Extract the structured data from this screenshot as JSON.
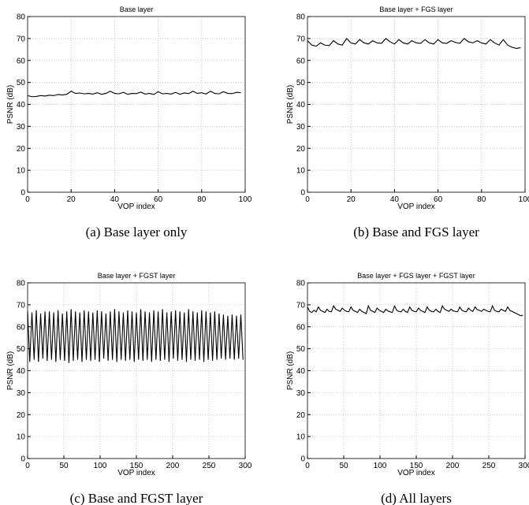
{
  "chart_data": [
    {
      "type": "line",
      "title": "Base layer",
      "caption": "(a) Base layer only",
      "xlabel": "VOP index",
      "ylabel": "PSNR (dB)",
      "color": "#000000",
      "grid": true,
      "xlim": [
        0,
        100
      ],
      "xticks": [
        0,
        20,
        40,
        60,
        80,
        100
      ],
      "ylim": [
        0,
        80
      ],
      "yticks": [
        0,
        10,
        20,
        30,
        40,
        50,
        60,
        70,
        80
      ],
      "x": [
        0,
        2,
        4,
        6,
        8,
        10,
        12,
        14,
        16,
        18,
        20,
        22,
        24,
        26,
        28,
        30,
        32,
        34,
        36,
        38,
        40,
        42,
        44,
        46,
        48,
        50,
        52,
        54,
        56,
        58,
        60,
        62,
        64,
        66,
        68,
        70,
        72,
        74,
        76,
        78,
        80,
        82,
        84,
        86,
        88,
        90,
        92,
        94,
        96,
        98
      ],
      "values": [
        44,
        43.5,
        43.6,
        44,
        43.8,
        44.2,
        44,
        44.5,
        44.3,
        44.6,
        46,
        45,
        45.2,
        44.8,
        45,
        44.7,
        45.3,
        44.6,
        45,
        46,
        45,
        44.8,
        45.5,
        44.6,
        45,
        44.9,
        45.6,
        44.7,
        45,
        44.5,
        45.8,
        44.8,
        45,
        44.7,
        45.5,
        44.6,
        45.2,
        44.9,
        46,
        45,
        45.3,
        44.7,
        46,
        45,
        44.8,
        45.8,
        45,
        44.9,
        45.5,
        45.3
      ]
    },
    {
      "type": "line",
      "title": "Base layer + FGS layer",
      "caption": "(b) Base and FGS layer",
      "xlabel": "VOP index",
      "ylabel": "PSNR (dB)",
      "color": "#000000",
      "grid": true,
      "xlim": [
        0,
        100
      ],
      "xticks": [
        0,
        20,
        40,
        60,
        80,
        100
      ],
      "ylim": [
        0,
        80
      ],
      "yticks": [
        0,
        10,
        20,
        30,
        40,
        50,
        60,
        70,
        80
      ],
      "x": [
        0,
        2,
        4,
        6,
        8,
        10,
        12,
        14,
        16,
        18,
        20,
        22,
        24,
        26,
        28,
        30,
        32,
        34,
        36,
        38,
        40,
        42,
        44,
        46,
        48,
        50,
        52,
        54,
        56,
        58,
        60,
        62,
        64,
        66,
        68,
        70,
        72,
        74,
        76,
        78,
        80,
        82,
        84,
        86,
        88,
        90,
        92,
        94,
        96,
        98
      ],
      "values": [
        69,
        67,
        66.5,
        68,
        67,
        66.8,
        69,
        67.5,
        67,
        70,
        68,
        67.5,
        69.5,
        68,
        67.5,
        69,
        68,
        67.8,
        70,
        68.5,
        67.5,
        69.5,
        68,
        67.5,
        69,
        68,
        67.8,
        69.5,
        68,
        67.5,
        69.5,
        68,
        67.8,
        69,
        68.2,
        67.8,
        70,
        68.5,
        68,
        69,
        68,
        67.5,
        69.5,
        68,
        67,
        69.5,
        67,
        66,
        65.5,
        65.8
      ]
    },
    {
      "type": "line",
      "title": "Base layer + FGST layer",
      "caption": "(c) Base and FGST layer",
      "xlabel": "VOP index",
      "ylabel": "PSNR (dB)",
      "color": "#000000",
      "grid": true,
      "xlim": [
        0,
        300
      ],
      "xticks": [
        0,
        50,
        100,
        150,
        200,
        250,
        300
      ],
      "ylim": [
        0,
        80
      ],
      "yticks": [
        0,
        10,
        20,
        30,
        40,
        50,
        60,
        70,
        80
      ],
      "x": [
        0,
        3,
        6,
        9,
        12,
        15,
        18,
        21,
        24,
        27,
        30,
        33,
        36,
        39,
        42,
        45,
        48,
        51,
        54,
        57,
        60,
        63,
        66,
        69,
        72,
        75,
        78,
        81,
        84,
        87,
        90,
        93,
        96,
        99,
        102,
        105,
        108,
        111,
        114,
        117,
        120,
        123,
        126,
        129,
        132,
        135,
        138,
        141,
        144,
        147,
        150,
        153,
        156,
        159,
        162,
        165,
        168,
        171,
        174,
        177,
        180,
        183,
        186,
        189,
        192,
        195,
        198,
        201,
        204,
        207,
        210,
        213,
        216,
        219,
        222,
        225,
        228,
        231,
        234,
        237,
        240,
        243,
        246,
        249,
        252,
        255,
        258,
        261,
        264,
        267,
        270,
        273,
        276,
        279,
        282,
        285,
        288,
        291,
        294,
        297
      ],
      "values": [
        67,
        44,
        66.5,
        45,
        67.5,
        44,
        66,
        45.5,
        67,
        44.5,
        67,
        45,
        66.5,
        44,
        67.5,
        45,
        66,
        44.5,
        67,
        43.5,
        68,
        44.5,
        67,
        45,
        66.5,
        44,
        67.5,
        45,
        67,
        44.5,
        66.5,
        45,
        67.5,
        44,
        67,
        45.5,
        66,
        44.5,
        67,
        45,
        68,
        44,
        67,
        45,
        66.5,
        44.5,
        67.5,
        45,
        67,
        44,
        66.5,
        45,
        68,
        44.5,
        67,
        45,
        66.5,
        44,
        67.5,
        45,
        67,
        44.5,
        68,
        45,
        66.5,
        44,
        67,
        45.5,
        67.5,
        44.5,
        67,
        45,
        66.5,
        44,
        68,
        45,
        67,
        44.5,
        66.5,
        45,
        67.5,
        44,
        67,
        45,
        66.5,
        44.5,
        67,
        45,
        66,
        45.5,
        65.5,
        45,
        65,
        45.5,
        65.5,
        45,
        65,
        45.5,
        65.5,
        45
      ]
    },
    {
      "type": "line",
      "title": "Base layer + FGS layer + FGST layer",
      "caption": "(d) All layers",
      "xlabel": "VOP index",
      "ylabel": "PSNR (dB)",
      "color": "#000000",
      "grid": true,
      "xlim": [
        0,
        300
      ],
      "xticks": [
        0,
        50,
        100,
        150,
        200,
        250,
        300
      ],
      "ylim": [
        0,
        80
      ],
      "yticks": [
        0,
        10,
        20,
        30,
        40,
        50,
        60,
        70,
        80
      ],
      "x": [
        0,
        3,
        6,
        9,
        12,
        15,
        18,
        21,
        24,
        27,
        30,
        33,
        36,
        39,
        42,
        45,
        48,
        51,
        54,
        57,
        60,
        63,
        66,
        69,
        72,
        75,
        78,
        81,
        84,
        87,
        90,
        93,
        96,
        99,
        102,
        105,
        108,
        111,
        114,
        117,
        120,
        123,
        126,
        129,
        132,
        135,
        138,
        141,
        144,
        147,
        150,
        153,
        156,
        159,
        162,
        165,
        168,
        171,
        174,
        177,
        180,
        183,
        186,
        189,
        192,
        195,
        198,
        201,
        204,
        207,
        210,
        213,
        216,
        219,
        222,
        225,
        228,
        231,
        234,
        237,
        240,
        243,
        246,
        249,
        252,
        255,
        258,
        261,
        264,
        267,
        270,
        273,
        276,
        279,
        282,
        285,
        288,
        291,
        294,
        297
      ],
      "values": [
        69,
        67,
        66.5,
        67.5,
        66.8,
        69,
        67.5,
        67,
        66.5,
        68,
        67,
        66.8,
        69.5,
        68,
        67.5,
        67,
        68.5,
        67.5,
        67,
        66.8,
        69,
        67.5,
        67,
        66.5,
        68,
        67,
        66.5,
        66,
        69.5,
        67.5,
        67,
        66.5,
        68.5,
        67.5,
        67,
        66.5,
        68,
        67.2,
        66.8,
        66.5,
        69.5,
        67.5,
        67,
        66.8,
        68,
        67,
        66.5,
        69,
        67.5,
        67,
        66.8,
        68.5,
        67.5,
        67,
        66.5,
        69,
        67.5,
        67,
        66.8,
        68,
        67,
        66.5,
        69.5,
        68,
        67.5,
        67,
        68,
        67.2,
        67,
        66.8,
        69,
        67.5,
        67,
        66.8,
        68.5,
        67.5,
        67,
        69,
        67.8,
        67.5,
        67,
        68,
        67.5,
        67,
        66.8,
        69.5,
        67.5,
        67,
        66.8,
        68,
        67.5,
        67,
        69,
        67.5,
        67,
        66.5,
        66,
        65.5,
        65,
        65.3
      ]
    }
  ]
}
